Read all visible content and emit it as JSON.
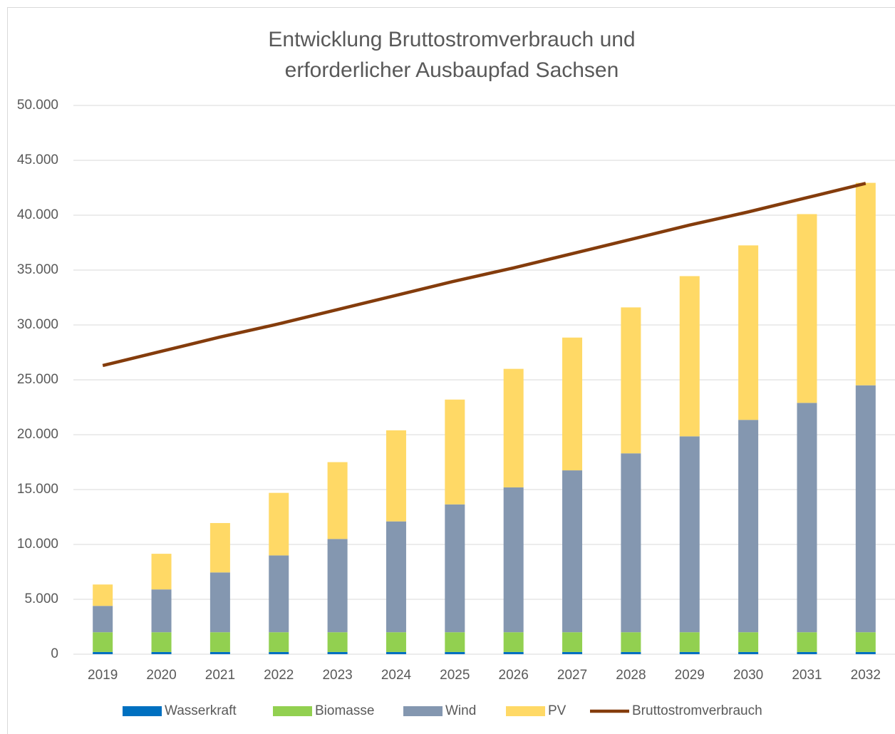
{
  "chart_data": {
    "type": "stacked_bar_line",
    "title": [
      "Entwicklung Bruttostromverbrauch und",
      "erforderlicher Ausbaupfad Sachsen"
    ],
    "categories": [
      "2019",
      "2020",
      "2021",
      "2022",
      "2023",
      "2024",
      "2025",
      "2026",
      "2027",
      "2028",
      "2029",
      "2030",
      "2031",
      "2032"
    ],
    "series": [
      {
        "name": "Wasserkraft",
        "color": "#0070c0",
        "type": "bar",
        "values": [
          200,
          200,
          200,
          200,
          200,
          200,
          200,
          200,
          200,
          200,
          200,
          200,
          200,
          200
        ]
      },
      {
        "name": "Biomasse",
        "color": "#92d050",
        "type": "bar",
        "values": [
          1800,
          1800,
          1800,
          1800,
          1800,
          1800,
          1800,
          1800,
          1800,
          1800,
          1800,
          1800,
          1800,
          1800
        ]
      },
      {
        "name": "Wind",
        "color": "#8497b0",
        "type": "bar",
        "values": [
          2400,
          3900,
          5450,
          7000,
          8500,
          10100,
          11650,
          13200,
          14750,
          16300,
          17850,
          19350,
          20900,
          22500
        ]
      },
      {
        "name": "PV",
        "color": "#ffd966",
        "type": "bar",
        "values": [
          1950,
          3250,
          4500,
          5700,
          7000,
          8300,
          9550,
          10800,
          12100,
          13300,
          14600,
          15900,
          17200,
          18450
        ]
      },
      {
        "name": "Bruttostromverbrauch",
        "color": "#843c0c",
        "type": "line",
        "values": [
          26300,
          27600,
          28900,
          30100,
          31400,
          32700,
          34000,
          35200,
          36500,
          37800,
          39100,
          40300,
          41600,
          42900
        ]
      }
    ],
    "ylim": [
      0,
      50000
    ],
    "yticks": [
      0,
      {
        "value": 5000,
        "label": "5.000"
      },
      {
        "value": 10000,
        "label": "10.000"
      },
      {
        "value": 15000,
        "label": "15.000"
      },
      {
        "value": 20000,
        "label": "20.000"
      },
      {
        "value": 25000,
        "label": "25.000"
      },
      {
        "value": 30000,
        "label": "30.000"
      },
      {
        "value": 35000,
        "label": "35.000"
      },
      {
        "value": 40000,
        "label": "40.000"
      },
      {
        "value": 45000,
        "label": "45.000"
      },
      {
        "value": 50000,
        "label": "50.000"
      }
    ],
    "grid": true,
    "legend": "bottom"
  }
}
